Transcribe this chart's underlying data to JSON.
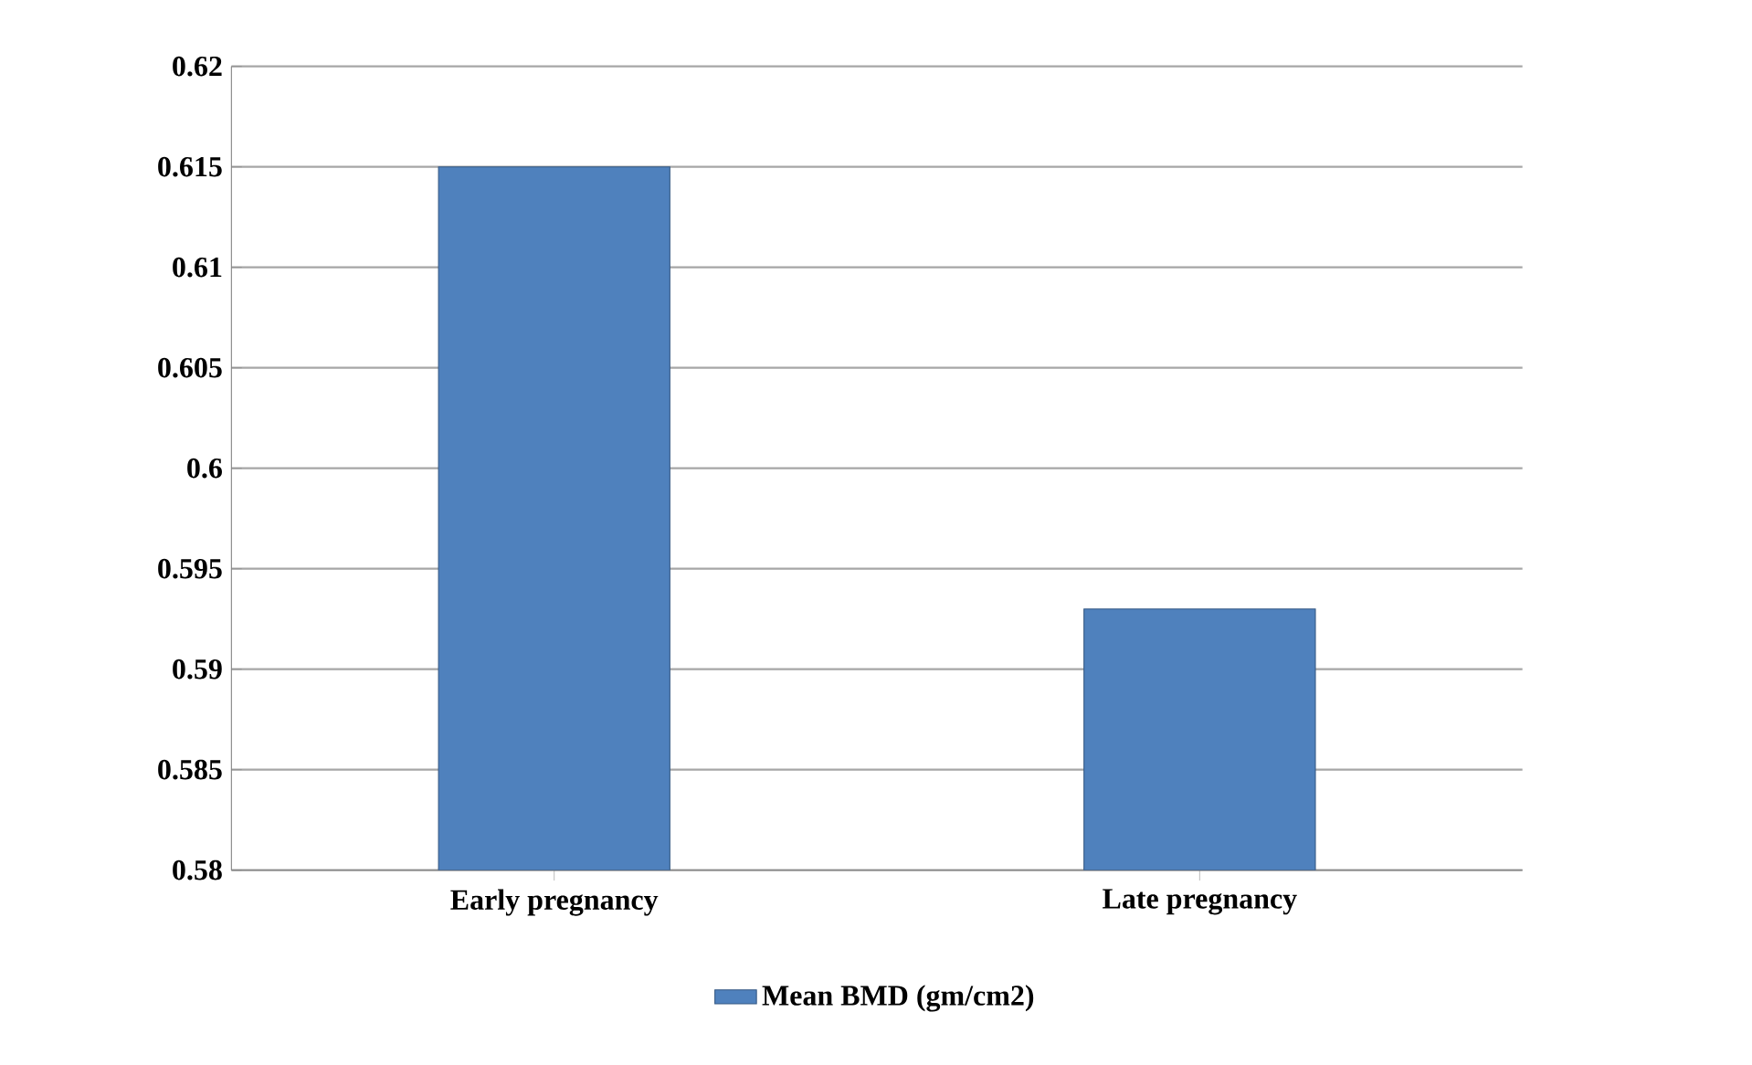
{
  "chart_data": {
    "type": "bar",
    "categories": [
      "Early pregnancy",
      "Late pregnancy"
    ],
    "series": [
      {
        "name": "Mean BMD (gm/cm2)",
        "color": "#4f81bd",
        "values": [
          0.615,
          0.593
        ]
      }
    ],
    "ylim": [
      0.58,
      0.62
    ],
    "yticks": [
      0.58,
      0.585,
      0.59,
      0.595,
      0.6,
      0.605,
      0.61,
      0.615,
      0.62
    ],
    "grid": "y",
    "legend": "bottom"
  }
}
